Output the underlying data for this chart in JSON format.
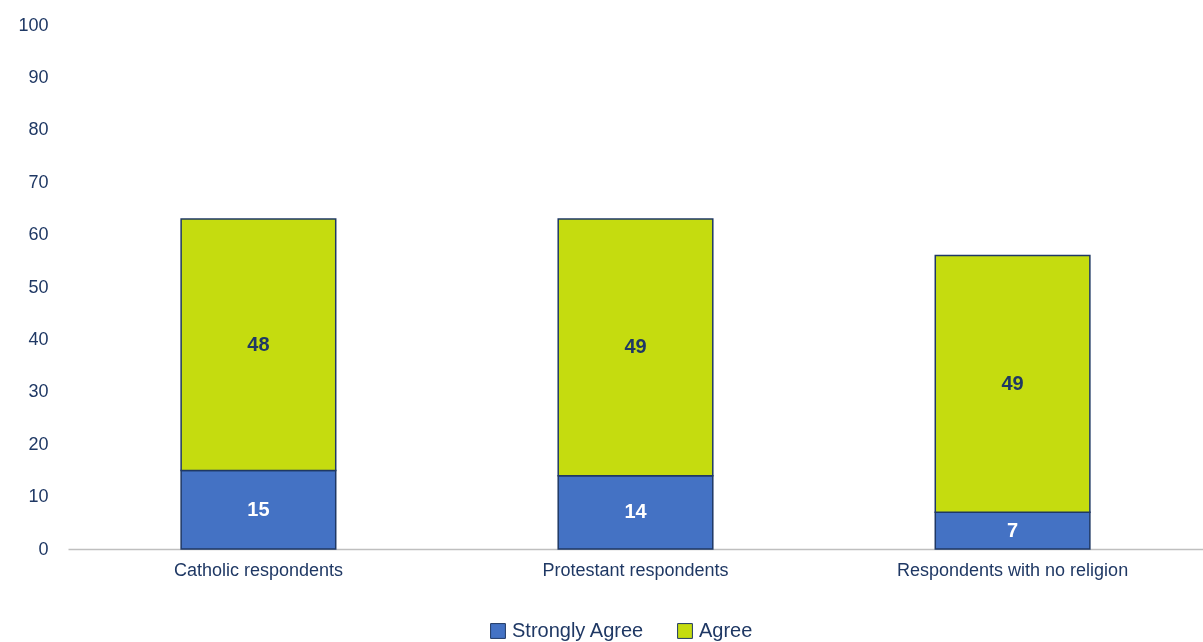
{
  "chart_data": {
    "type": "bar",
    "stacked": true,
    "categories": [
      "Catholic respondents",
      "Protestant respondents",
      "Respondents with no religion"
    ],
    "series": [
      {
        "name": "Strongly Agree",
        "color": "#4472c4",
        "values": [
          15,
          14,
          7
        ]
      },
      {
        "name": "Agree",
        "color": "#c5dc0f",
        "values": [
          48,
          49,
          49
        ]
      }
    ],
    "ylim": [
      0,
      100
    ],
    "yticks": [
      0,
      10,
      20,
      30,
      40,
      50,
      60,
      70,
      80,
      90,
      100
    ],
    "grid": false,
    "legend": "bottom",
    "data_labels": true
  }
}
